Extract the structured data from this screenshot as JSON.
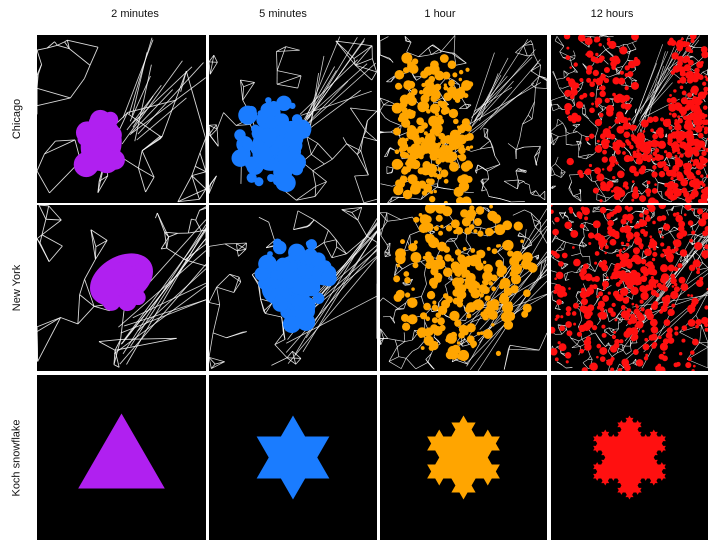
{
  "columns": [
    {
      "label": "2 minutes",
      "color": "#b020f0"
    },
    {
      "label": "5 minutes",
      "color": "#1a7cff"
    },
    {
      "label": "1 hour",
      "color": "#ffa500"
    },
    {
      "label": "12 hours",
      "color": "#ff1010"
    }
  ],
  "rows": [
    {
      "label": "Chicago",
      "kind": "network",
      "background": "#000000",
      "edge_color": "#ffffff"
    },
    {
      "label": "New York",
      "kind": "network",
      "background": "#000000",
      "edge_color": "#ffffff"
    },
    {
      "label": "Koch snowflake",
      "kind": "fractal",
      "background": "#000000",
      "koch_iterations": [
        0,
        1,
        2,
        3
      ]
    }
  ]
}
